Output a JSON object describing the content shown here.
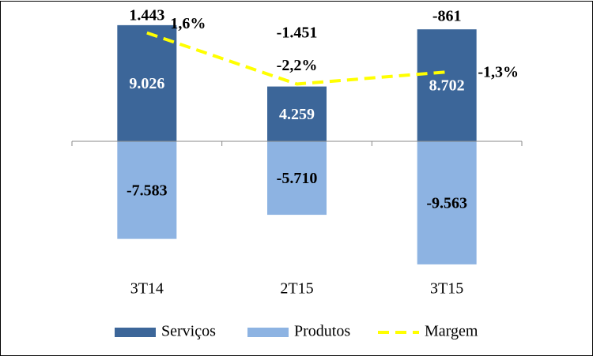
{
  "chart_data": {
    "type": "bar",
    "categories": [
      "3T14",
      "2T15",
      "3T15"
    ],
    "series": [
      {
        "name": "Serviços",
        "color": "#3c6699",
        "values": [
          9026,
          4259,
          8702
        ],
        "value_labels": [
          "9.026",
          "4.259",
          "8.702"
        ]
      },
      {
        "name": "Produtos",
        "color": "#8db3e2",
        "values": [
          -7583,
          -5710,
          -9563
        ],
        "value_labels": [
          "-7.583",
          "-5.710",
          "-9.563"
        ]
      },
      {
        "name": "Margem",
        "type": "line",
        "axis": "y2",
        "color": "#ffff00",
        "dashed": true,
        "values": [
          1.6,
          -2.2,
          -1.3
        ],
        "value_labels": [
          "1,6%",
          "-2,2%",
          "-1,3%"
        ]
      }
    ],
    "annotations": [
      "1.443",
      "-1.451",
      "-861"
    ],
    "ylim": [
      -10000,
      10000
    ],
    "y2lim": [
      -16,
      3.1
    ],
    "legend": "bottom"
  }
}
